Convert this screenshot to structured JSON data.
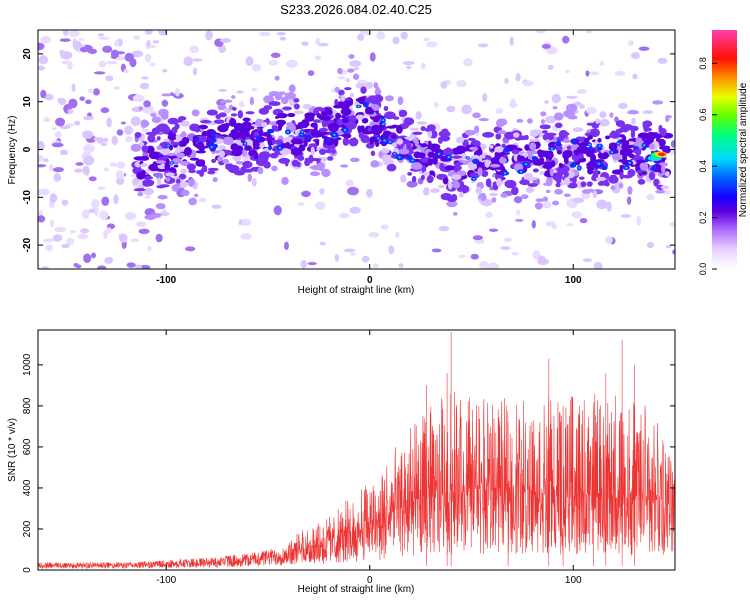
{
  "title": "S233.2026.084.02.40.C25",
  "chart_data": [
    {
      "type": "heatmap",
      "xlabel": "Height of straight line (km)",
      "ylabel": "Frequency (Hz)",
      "xlim": [
        -163,
        150
      ],
      "ylim": [
        -25,
        25
      ],
      "xticks": [
        -100,
        0,
        100
      ],
      "yticks": [
        -20,
        -10,
        0,
        10,
        20
      ],
      "colorbar": {
        "label": "Normalized spectral amplitude",
        "range": [
          0,
          0.93
        ],
        "ticks": [
          "0.0",
          "0.2",
          "0.4",
          "0.6",
          "0.8"
        ],
        "tick_values": [
          0.0,
          0.2,
          0.4,
          0.6,
          0.8
        ],
        "colormap": [
          "#ffffff",
          "#e0c8ff",
          "#a070ff",
          "#7010e8",
          "#2000ff",
          "#0070ff",
          "#00e0ff",
          "#00ff60",
          "#a0ff00",
          "#ffff00",
          "#ff9000",
          "#ff0000",
          "#ff40a0"
        ]
      },
      "band": {
        "description": "energy concentrated near 0 Hz, rising to ~+8 Hz near x=-5 km",
        "centerline": [
          [
            -110,
            -2
          ],
          [
            -80,
            1
          ],
          [
            -50,
            3
          ],
          [
            -20,
            4
          ],
          [
            -5,
            8
          ],
          [
            10,
            2
          ],
          [
            40,
            -4
          ],
          [
            70,
            -2
          ],
          [
            100,
            -1
          ],
          [
            130,
            -1
          ],
          [
            145,
            -1
          ]
        ],
        "peak": {
          "x": 143,
          "y": -1,
          "value": 0.9
        }
      }
    },
    {
      "type": "line",
      "xlabel": "Height of straight line (km)",
      "ylabel": "SNR (10 * v/v)",
      "xlim": [
        -163,
        150
      ],
      "ylim": [
        0,
        1170
      ],
      "xticks": [
        -100,
        0,
        100
      ],
      "yticks": [
        0,
        200,
        400,
        600,
        800,
        1000
      ],
      "color": "#ee3333",
      "envelope": [
        [
          -163,
          25
        ],
        [
          -120,
          25
        ],
        [
          -80,
          40
        ],
        [
          -60,
          55
        ],
        [
          -40,
          80
        ],
        [
          -20,
          140
        ],
        [
          0,
          200
        ],
        [
          20,
          320
        ],
        [
          40,
          380
        ],
        [
          60,
          380
        ],
        [
          80,
          380
        ],
        [
          100,
          350
        ],
        [
          120,
          360
        ],
        [
          140,
          330
        ],
        [
          150,
          380
        ]
      ],
      "max_envelope": [
        [
          -163,
          35
        ],
        [
          -120,
          40
        ],
        [
          -80,
          80
        ],
        [
          -60,
          100
        ],
        [
          -40,
          160
        ],
        [
          -20,
          260
        ],
        [
          0,
          450
        ],
        [
          20,
          700
        ],
        [
          40,
          900
        ],
        [
          60,
          820
        ],
        [
          80,
          880
        ],
        [
          100,
          850
        ],
        [
          120,
          880
        ],
        [
          140,
          800
        ],
        [
          150,
          500
        ]
      ],
      "spikes": [
        [
          40,
          1160
        ],
        [
          38,
          960
        ],
        [
          28,
          900
        ],
        [
          88,
          1030
        ],
        [
          124,
          1120
        ],
        [
          130,
          1000
        ],
        [
          116,
          960
        ],
        [
          95,
          800
        ],
        [
          110,
          780
        ],
        [
          68,
          720
        ]
      ]
    }
  ]
}
